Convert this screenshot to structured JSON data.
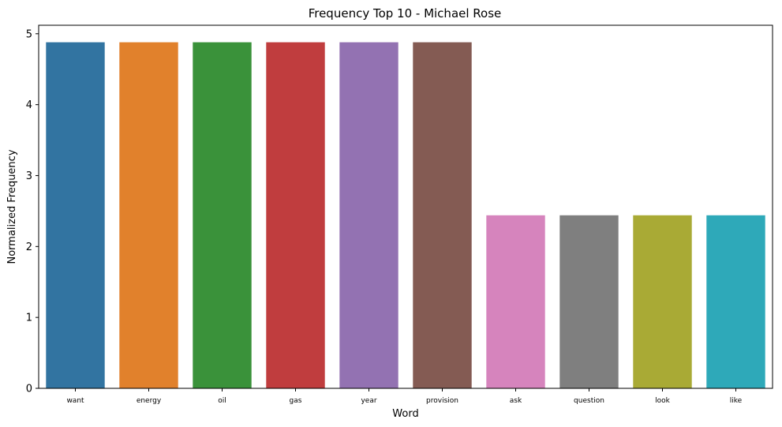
{
  "chart_data": {
    "type": "bar",
    "title": "Frequency Top 10 - Michael Rose",
    "xlabel": "Word",
    "ylabel": "Normalized Frequency",
    "categories": [
      "want",
      "energy",
      "oil",
      "gas",
      "year",
      "provision",
      "ask",
      "question",
      "look",
      "like"
    ],
    "values": [
      4.88,
      4.88,
      4.88,
      4.88,
      4.88,
      4.88,
      2.44,
      2.44,
      2.44,
      2.44
    ],
    "colors": [
      "#3274a1",
      "#e1812c",
      "#3a923a",
      "#c03d3e",
      "#9372b2",
      "#845b53",
      "#d684bd",
      "#7f7f7f",
      "#a9aa35",
      "#2ea9b9"
    ],
    "ylim": [
      0,
      5.12
    ],
    "yticks": [
      "0",
      "1",
      "2",
      "3",
      "4",
      "5"
    ],
    "grid": false,
    "legend": "none"
  }
}
